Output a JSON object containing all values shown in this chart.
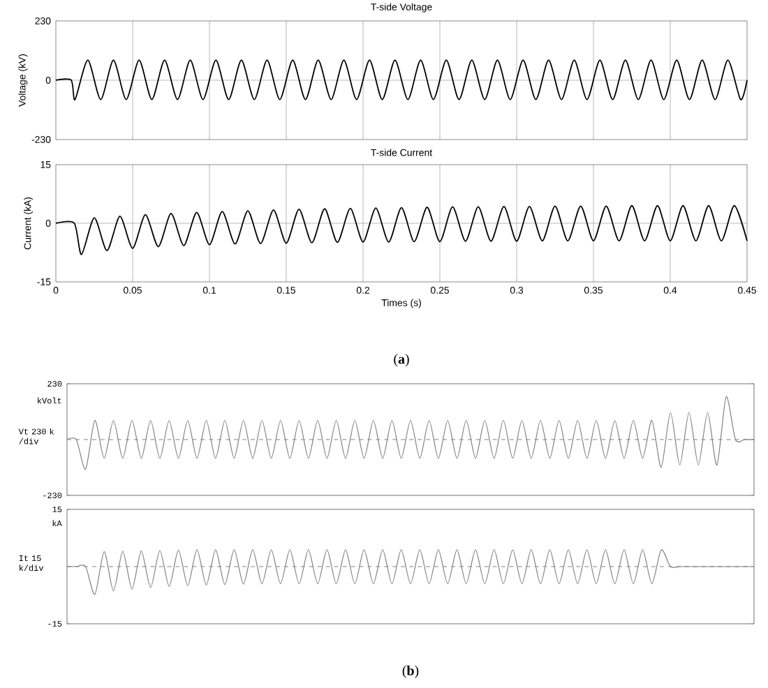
{
  "chart_data": [
    {
      "type": "line",
      "title": "T-side Voltage",
      "ylabel": "Voltage (kV)",
      "xlim": [
        0,
        0.45
      ],
      "xticks": [
        0,
        0.05,
        0.1,
        0.15,
        0.2,
        0.25,
        0.3,
        0.35,
        0.4,
        0.45
      ],
      "ylim": [
        -230,
        230
      ],
      "yticks": [
        -230,
        0,
        230
      ],
      "grid": true,
      "tick_labels": "y",
      "x": [
        0,
        0.01,
        0.0125,
        0.0208,
        0.0292,
        0.0375,
        0.0458,
        0.0542,
        0.0625,
        0.0708,
        0.0792,
        0.0875,
        0.0958,
        0.1042,
        0.1125,
        0.1208,
        0.1292,
        0.1375,
        0.1458,
        0.1542,
        0.1625,
        0.1708,
        0.1792,
        0.1875,
        0.1958,
        0.2042,
        0.2125,
        0.2208,
        0.2292,
        0.2375,
        0.2458,
        0.2542,
        0.2625,
        0.2708,
        0.2792,
        0.2875,
        0.2958,
        0.3042,
        0.3125,
        0.3208,
        0.3292,
        0.3375,
        0.3458,
        0.3542,
        0.3625,
        0.3708,
        0.3792,
        0.3875,
        0.3958,
        0.4042,
        0.4125,
        0.4208,
        0.4292,
        0.4375,
        0.4458,
        0.45
      ],
      "series": [
        {
          "color": "#000000",
          "values": [
            0,
            0,
            -75,
            78,
            -75,
            78,
            -75,
            78,
            -75,
            78,
            -75,
            78,
            -75,
            78,
            -75,
            78,
            -75,
            78,
            -75,
            78,
            -75,
            78,
            -75,
            78,
            -75,
            78,
            -75,
            78,
            -75,
            78,
            -75,
            78,
            -75,
            78,
            -75,
            78,
            -75,
            78,
            -75,
            78,
            -75,
            78,
            -75,
            78,
            -75,
            78,
            -75,
            78,
            -75,
            78,
            -75,
            78,
            -75,
            78,
            -75,
            0
          ]
        }
      ]
    },
    {
      "type": "line",
      "title": "T-side Current",
      "xlabel": "Times (s)",
      "ylabel": "Current (kA)",
      "xlim": [
        0,
        0.45
      ],
      "xticks": [
        0,
        0.05,
        0.1,
        0.15,
        0.2,
        0.25,
        0.3,
        0.35,
        0.4,
        0.45
      ],
      "ylim": [
        -15,
        15
      ],
      "yticks": [
        -15,
        0,
        15
      ],
      "grid": true,
      "annotations": [
        "(**a**)"
      ],
      "x": [
        0,
        0.012,
        0.0167,
        0.025,
        0.0333,
        0.0417,
        0.05,
        0.0583,
        0.0667,
        0.075,
        0.0833,
        0.0917,
        0.1,
        0.1083,
        0.1167,
        0.125,
        0.1333,
        0.1417,
        0.15,
        0.1583,
        0.1667,
        0.175,
        0.1833,
        0.1917,
        0.2,
        0.2083,
        0.2167,
        0.225,
        0.2333,
        0.2417,
        0.25,
        0.2583,
        0.2667,
        0.275,
        0.2833,
        0.2917,
        0.3,
        0.3083,
        0.3167,
        0.325,
        0.3333,
        0.3417,
        0.35,
        0.3583,
        0.3667,
        0.375,
        0.3833,
        0.3917,
        0.4,
        0.4083,
        0.4167,
        0.425,
        0.4333,
        0.4417,
        0.45
      ],
      "series": [
        {
          "color": "#000000",
          "values": [
            0,
            0,
            -8.0,
            1.4,
            -7.0,
            1.8,
            -6.4,
            2.2,
            -6.0,
            2.5,
            -5.7,
            2.8,
            -5.5,
            3.0,
            -5.3,
            3.2,
            -5.2,
            3.4,
            -5.1,
            3.6,
            -5.0,
            3.7,
            -4.9,
            3.8,
            -4.8,
            3.9,
            -4.8,
            4.0,
            -4.7,
            4.1,
            -4.7,
            4.2,
            -4.6,
            4.2,
            -4.6,
            4.3,
            -4.6,
            4.3,
            -4.5,
            4.4,
            -4.5,
            4.4,
            -4.5,
            4.4,
            -4.5,
            4.5,
            -4.5,
            4.5,
            -4.5,
            4.5,
            -4.5,
            4.5,
            -4.5,
            4.5,
            -4.5
          ]
        }
      ]
    },
    {
      "type": "line",
      "ylabel": "Vt 230 k /div",
      "ylim": [
        -230,
        230
      ],
      "yticks": [
        -230,
        230
      ],
      "tick_labels": "y",
      "annotations": [
        "kVolt"
      ],
      "categories": [
        null,
        null,
        null,
        null,
        null,
        null,
        null,
        null,
        null,
        null,
        null,
        null,
        null,
        null,
        null,
        null,
        null,
        null,
        null,
        null,
        null,
        null,
        null,
        null,
        null,
        null,
        null,
        null,
        null,
        null,
        null,
        null,
        null,
        null,
        null,
        null,
        null,
        null,
        null,
        null,
        null,
        null,
        null,
        null,
        null,
        null,
        null,
        null,
        null,
        null,
        null,
        null,
        null,
        null,
        null,
        null,
        null,
        null,
        null,
        null,
        null,
        null,
        null,
        null,
        null,
        null,
        null,
        null,
        null,
        null,
        null,
        null,
        null,
        null,
        null
      ],
      "ref_lines": [
        {
          "axis": "y",
          "value": 0,
          "line_style": "dashed",
          "color": "#808080"
        }
      ],
      "series": [
        {
          "color": "#808080",
          "values": [
            0,
            0,
            -122,
            79,
            -77,
            79,
            -77,
            79,
            -77,
            79,
            -77,
            79,
            -77,
            79,
            -77,
            79,
            -77,
            79,
            -77,
            79,
            -77,
            79,
            -77,
            79,
            -77,
            79,
            -77,
            79,
            -77,
            79,
            -77,
            79,
            -77,
            79,
            -77,
            79,
            -77,
            79,
            -77,
            79,
            -77,
            79,
            -77,
            79,
            -77,
            79,
            -77,
            79,
            -77,
            79,
            -77,
            79,
            -77,
            79,
            -77,
            79,
            -77,
            79,
            -77,
            79,
            -77,
            79,
            -77,
            79,
            -114,
            112,
            -105,
            112,
            -105,
            112,
            -105,
            176,
            0,
            0,
            0
          ]
        }
      ]
    },
    {
      "type": "line",
      "ylabel": "It 15 k/div",
      "ylim": [
        -15,
        15
      ],
      "yticks": [
        -15,
        15
      ],
      "tick_labels": "y",
      "annotations": [
        "kA",
        "(**b**)"
      ],
      "categories": [
        null,
        null,
        null,
        null,
        null,
        null,
        null,
        null,
        null,
        null,
        null,
        null,
        null,
        null,
        null,
        null,
        null,
        null,
        null,
        null,
        null,
        null,
        null,
        null,
        null,
        null,
        null,
        null,
        null,
        null,
        null,
        null,
        null,
        null,
        null,
        null,
        null,
        null,
        null,
        null,
        null,
        null,
        null,
        null,
        null,
        null,
        null,
        null,
        null,
        null,
        null,
        null,
        null,
        null,
        null,
        null,
        null,
        null,
        null,
        null,
        null,
        null,
        null,
        null,
        null,
        null,
        null,
        null,
        null,
        null,
        null,
        null,
        null,
        null,
        null
      ],
      "ref_lines": [
        {
          "axis": "y",
          "value": 0,
          "line_style": "dashed",
          "color": "#808080"
        }
      ],
      "series": [
        {
          "color": "#808080",
          "values": [
            0,
            0,
            0,
            -7.3,
            3.9,
            -6.4,
            4.0,
            -5.9,
            4.1,
            -5.5,
            4.2,
            -5.2,
            4.3,
            -5.0,
            4.4,
            -4.8,
            4.4,
            -4.7,
            4.4,
            -4.6,
            4.4,
            -4.5,
            4.4,
            -4.5,
            4.4,
            -4.5,
            4.4,
            -4.5,
            4.4,
            -4.5,
            4.4,
            -4.5,
            4.4,
            -4.5,
            4.4,
            -4.5,
            4.4,
            -4.5,
            4.4,
            -4.5,
            4.4,
            -4.5,
            4.4,
            -4.5,
            4.4,
            -4.5,
            4.4,
            -4.5,
            4.4,
            -4.5,
            4.4,
            -4.5,
            4.4,
            -4.5,
            4.4,
            -4.5,
            4.4,
            -4.5,
            4.4,
            -4.5,
            4.4,
            -4.5,
            4.4,
            -4.5,
            4.4,
            0,
            0,
            0,
            0,
            0,
            0,
            0,
            0,
            0,
            0
          ]
        }
      ]
    }
  ]
}
